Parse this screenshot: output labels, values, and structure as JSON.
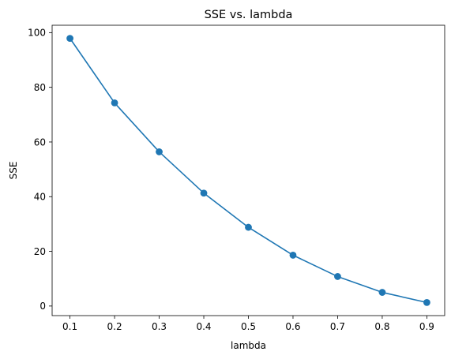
{
  "chart_data": {
    "type": "line",
    "title": "SSE vs. lambda",
    "xlabel": "lambda",
    "ylabel": "SSE",
    "x": [
      0.1,
      0.2,
      0.3,
      0.4,
      0.5,
      0.6,
      0.7,
      0.8,
      0.9
    ],
    "series": [
      {
        "values": [
          97.9,
          74.3,
          56.4,
          41.3,
          28.8,
          18.6,
          10.8,
          5.0,
          1.3
        ],
        "color": "#1f77b4",
        "marker": "circle"
      }
    ],
    "xticks": [
      0.1,
      0.2,
      0.3,
      0.4,
      0.5,
      0.6,
      0.7,
      0.8,
      0.9
    ],
    "yticks": [
      0,
      20,
      40,
      60,
      80,
      100
    ],
    "xlim": [
      0.06,
      0.94
    ],
    "ylim": [
      -3.5,
      102.7
    ],
    "grid": false,
    "legend": false
  }
}
